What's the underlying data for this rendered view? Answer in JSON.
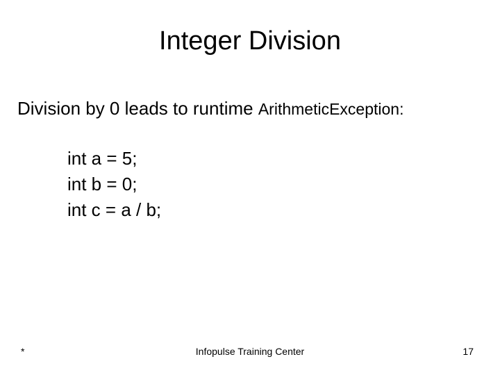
{
  "slide": {
    "title": "Integer Division",
    "intro_prefix": "Division by 0 leads to runtime ",
    "exception": "ArithmeticException:",
    "code": {
      "line1": "int a = 5;",
      "line2": "int b = 0;",
      "line3": "int c = a / b;"
    }
  },
  "footer": {
    "date_placeholder": "*",
    "center": "Infopulse Training Center",
    "page_number": "17"
  },
  "style": {
    "background": "#ffffff",
    "text_color": "#000000",
    "title_fontsize": 38,
    "body_fontsize": 26,
    "exception_fontsize": 23,
    "footer_fontsize": 14,
    "font_family": "Arial"
  }
}
